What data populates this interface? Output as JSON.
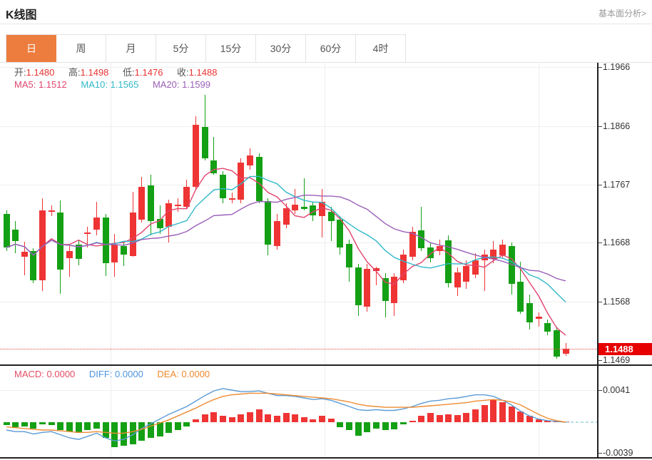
{
  "page": {
    "title": "K线图",
    "analysis_link": "基本面分析>"
  },
  "tabs": {
    "items": [
      "日",
      "周",
      "月",
      "5分",
      "15分",
      "30分",
      "60分",
      "4时"
    ],
    "selected_index": 0
  },
  "legend": {
    "open_label": "开:",
    "open": "1.1480",
    "high_label": "高:",
    "high": "1.1498",
    "low_label": "低:",
    "low": "1.1476",
    "close_label": "收:",
    "close": "1.1488",
    "ma5_label": "MA5:",
    "ma5": "1.1512",
    "ma10_label": "MA10:",
    "ma10": "1.1565",
    "ma20_label": "MA20:",
    "ma20": "1.1599"
  },
  "macd_legend": {
    "macd_label": "MACD:",
    "macd": "0.0000",
    "diff_label": "DIFF:",
    "diff": "0.0000",
    "dea_label": "DEA:",
    "dea": "0.0000"
  },
  "price_axis": {
    "labels": [
      "1.1966",
      "1.1866",
      "1.1767",
      "1.1668",
      "1.1568",
      "1.1469"
    ],
    "current_price_label": "1.1488"
  },
  "macd_axis": {
    "labels": [
      "0.0041",
      "-0.0039"
    ]
  },
  "colors": {
    "up": "#ef3434",
    "down": "#14a014",
    "ma5": "#e0446e",
    "ma10": "#2fb8c8",
    "ma20": "#9a5fb8",
    "diff_line": "#5b9bd5",
    "dea_line": "#ee8c33",
    "zero_dash": "#9fd6db",
    "tab_active": "#ed7d3e",
    "price_tag_bg": "#e60000",
    "dotted_line": "#e64545"
  },
  "chart_data": {
    "type": "candlestick",
    "title": "K线图 (daily K-line with MA5/MA10/MA20 and MACD sub-chart)",
    "legend_position": "top-left",
    "grid": true,
    "price_axis_values": [
      1.1966,
      1.1866,
      1.1767,
      1.1668,
      1.1568,
      1.1469
    ],
    "current_price": 1.1488,
    "ma_periods": [
      5,
      10,
      20
    ],
    "candles_format": [
      "open",
      "high",
      "low",
      "close"
    ],
    "candles": [
      [
        1.1717,
        1.1723,
        1.1654,
        1.166
      ],
      [
        1.169,
        1.1705,
        1.165,
        1.1671
      ],
      [
        1.1644,
        1.167,
        1.1613,
        1.1653
      ],
      [
        1.1654,
        1.1659,
        1.1599,
        1.1604
      ],
      [
        1.1604,
        1.1744,
        1.1586,
        1.1723
      ],
      [
        1.1723,
        1.1731,
        1.1713,
        1.1723
      ],
      [
        1.1719,
        1.174,
        1.1581,
        1.1622
      ],
      [
        1.1642,
        1.1662,
        1.1611,
        1.1654
      ],
      [
        1.1665,
        1.1674,
        1.163,
        1.1641
      ],
      [
        1.1683,
        1.1695,
        1.166,
        1.1685
      ],
      [
        1.169,
        1.1738,
        1.1681,
        1.1711
      ],
      [
        1.1711,
        1.1717,
        1.1612,
        1.1634
      ],
      [
        1.1634,
        1.1683,
        1.161,
        1.1665
      ],
      [
        1.1662,
        1.1668,
        1.1628,
        1.1648
      ],
      [
        1.1646,
        1.1755,
        1.1644,
        1.1719
      ],
      [
        1.1707,
        1.178,
        1.1702,
        1.1763
      ],
      [
        1.1765,
        1.1783,
        1.1681,
        1.1705
      ],
      [
        1.1708,
        1.1731,
        1.1683,
        1.1693
      ],
      [
        1.1695,
        1.1741,
        1.1668,
        1.1735
      ],
      [
        1.1733,
        1.1744,
        1.1721,
        1.1733
      ],
      [
        1.1729,
        1.1775,
        1.1725,
        1.1763
      ],
      [
        1.1763,
        1.1883,
        1.1759,
        1.1868
      ],
      [
        1.1864,
        1.1919,
        1.1808,
        1.1811
      ],
      [
        1.1808,
        1.1848,
        1.1783,
        1.1786
      ],
      [
        1.1783,
        1.1789,
        1.1735,
        1.1743
      ],
      [
        1.1743,
        1.1753,
        1.1735,
        1.1743
      ],
      [
        1.1741,
        1.1811,
        1.1735,
        1.1804
      ],
      [
        1.1799,
        1.1828,
        1.1792,
        1.1816
      ],
      [
        1.1814,
        1.182,
        1.1735,
        1.1739
      ],
      [
        1.1739,
        1.1744,
        1.1647,
        1.1665
      ],
      [
        1.1662,
        1.1717,
        1.1656,
        1.1705
      ],
      [
        1.1699,
        1.1735,
        1.1693,
        1.1727
      ],
      [
        1.1723,
        1.1759,
        1.1717,
        1.1733
      ],
      [
        1.1729,
        1.1777,
        1.1723,
        1.1725
      ],
      [
        1.1731,
        1.1737,
        1.1705,
        1.1714
      ],
      [
        1.1713,
        1.1759,
        1.1677,
        1.1738
      ],
      [
        1.172,
        1.1729,
        1.1671,
        1.1705
      ],
      [
        1.1707,
        1.1713,
        1.1648,
        1.166
      ],
      [
        1.1666,
        1.1674,
        1.1602,
        1.1626
      ],
      [
        1.1626,
        1.1632,
        1.1544,
        1.1562
      ],
      [
        1.156,
        1.1632,
        1.1551,
        1.1624
      ],
      [
        1.162,
        1.1628,
        1.1596,
        1.1625
      ],
      [
        1.1608,
        1.1616,
        1.1541,
        1.1569
      ],
      [
        1.1566,
        1.1617,
        1.1544,
        1.161
      ],
      [
        1.1604,
        1.1656,
        1.1599,
        1.1648
      ],
      [
        1.1644,
        1.1695,
        1.1638,
        1.1687
      ],
      [
        1.1689,
        1.1729,
        1.1654,
        1.1659
      ],
      [
        1.166,
        1.1668,
        1.1634,
        1.1642
      ],
      [
        1.1654,
        1.1673,
        1.1647,
        1.1663
      ],
      [
        1.1672,
        1.1681,
        1.1592,
        1.16
      ],
      [
        1.1592,
        1.1626,
        1.1578,
        1.1618
      ],
      [
        1.1602,
        1.1638,
        1.159,
        1.1629
      ],
      [
        1.1614,
        1.165,
        1.1608,
        1.1638
      ],
      [
        1.1638,
        1.1656,
        1.1586,
        1.1648
      ],
      [
        1.1641,
        1.1671,
        1.1634,
        1.1656
      ],
      [
        1.1647,
        1.1673,
        1.1642,
        1.1665
      ],
      [
        1.1662,
        1.1668,
        1.158,
        1.1598
      ],
      [
        1.1602,
        1.1636,
        1.1547,
        1.1551
      ],
      [
        1.1566,
        1.158,
        1.1521,
        1.1533
      ],
      [
        1.1539,
        1.155,
        1.1526,
        1.1543
      ],
      [
        1.1532,
        1.1538,
        1.1511,
        1.1517
      ],
      [
        1.152,
        1.1526,
        1.1471,
        1.1475
      ],
      [
        1.148,
        1.1498,
        1.1476,
        1.1488
      ]
    ],
    "macd": {
      "axis_values": [
        0.0041,
        -0.0039
      ],
      "hist": [
        -0.0004,
        -0.0006,
        -0.0005,
        -0.0008,
        -0.0003,
        -0.0004,
        -0.001,
        -0.0012,
        -0.0014,
        -0.001,
        -0.0008,
        -0.002,
        -0.0032,
        -0.003,
        -0.0028,
        -0.0024,
        -0.002,
        -0.0018,
        -0.0014,
        -0.001,
        -0.0005,
        0.0004,
        0.001,
        0.0013,
        0.0008,
        0.0006,
        0.001,
        0.0013,
        0.0016,
        0.001,
        0.0008,
        0.0012,
        0.001,
        0.0006,
        0.0004,
        0.0008,
        0.0005,
        -0.0006,
        -0.001,
        -0.0017,
        -0.0013,
        -0.0008,
        -0.001,
        -0.0009,
        -0.0003,
        0.0002,
        0.0008,
        0.0012,
        0.0009,
        0.001,
        0.0009,
        0.0012,
        0.0016,
        0.0022,
        0.0028,
        0.0026,
        0.002,
        0.0014,
        0.0008,
        0.0004,
        0.0002,
        0.0001,
        0.0
      ],
      "diff": [
        -0.001,
        -0.0012,
        -0.0012,
        -0.0015,
        -0.0013,
        -0.0012,
        -0.0016,
        -0.002,
        -0.0022,
        -0.0018,
        -0.0014,
        -0.002,
        -0.0024,
        -0.0022,
        -0.0016,
        -0.0008,
        -0.0002,
        0.0004,
        0.001,
        0.0015,
        0.002,
        0.0027,
        0.0034,
        0.004,
        0.0043,
        0.0041,
        0.0039,
        0.0039,
        0.004,
        0.0037,
        0.0034,
        0.0034,
        0.0033,
        0.0031,
        0.0029,
        0.003,
        0.0028,
        0.0024,
        0.002,
        0.0016,
        0.0015,
        0.0016,
        0.0015,
        0.0015,
        0.0017,
        0.002,
        0.0024,
        0.0027,
        0.0028,
        0.003,
        0.0031,
        0.0033,
        0.0035,
        0.0035,
        0.0033,
        0.0028,
        0.0022,
        0.0014,
        0.0008,
        0.0004,
        0.0002,
        0.0001,
        0.0
      ],
      "dea": [
        -0.0006,
        -0.0007,
        -0.0008,
        -0.0009,
        -0.001,
        -0.001,
        -0.0011,
        -0.0012,
        -0.0013,
        -0.0013,
        -0.0012,
        -0.0013,
        -0.0014,
        -0.0014,
        -0.0012,
        -0.0009,
        -0.0005,
        -0.0001,
        0.0003,
        0.0008,
        0.0013,
        0.0018,
        0.0024,
        0.0029,
        0.0033,
        0.0035,
        0.0036,
        0.0037,
        0.0037,
        0.0037,
        0.0036,
        0.0035,
        0.0034,
        0.0033,
        0.0032,
        0.0031,
        0.003,
        0.0028,
        0.0026,
        0.0023,
        0.0021,
        0.002,
        0.0019,
        0.0019,
        0.0019,
        0.0019,
        0.002,
        0.0021,
        0.0022,
        0.0023,
        0.0024,
        0.0025,
        0.0027,
        0.0028,
        0.0029,
        0.0028,
        0.0026,
        0.0022,
        0.0016,
        0.001,
        0.0005,
        0.0002,
        0.0
      ]
    }
  }
}
